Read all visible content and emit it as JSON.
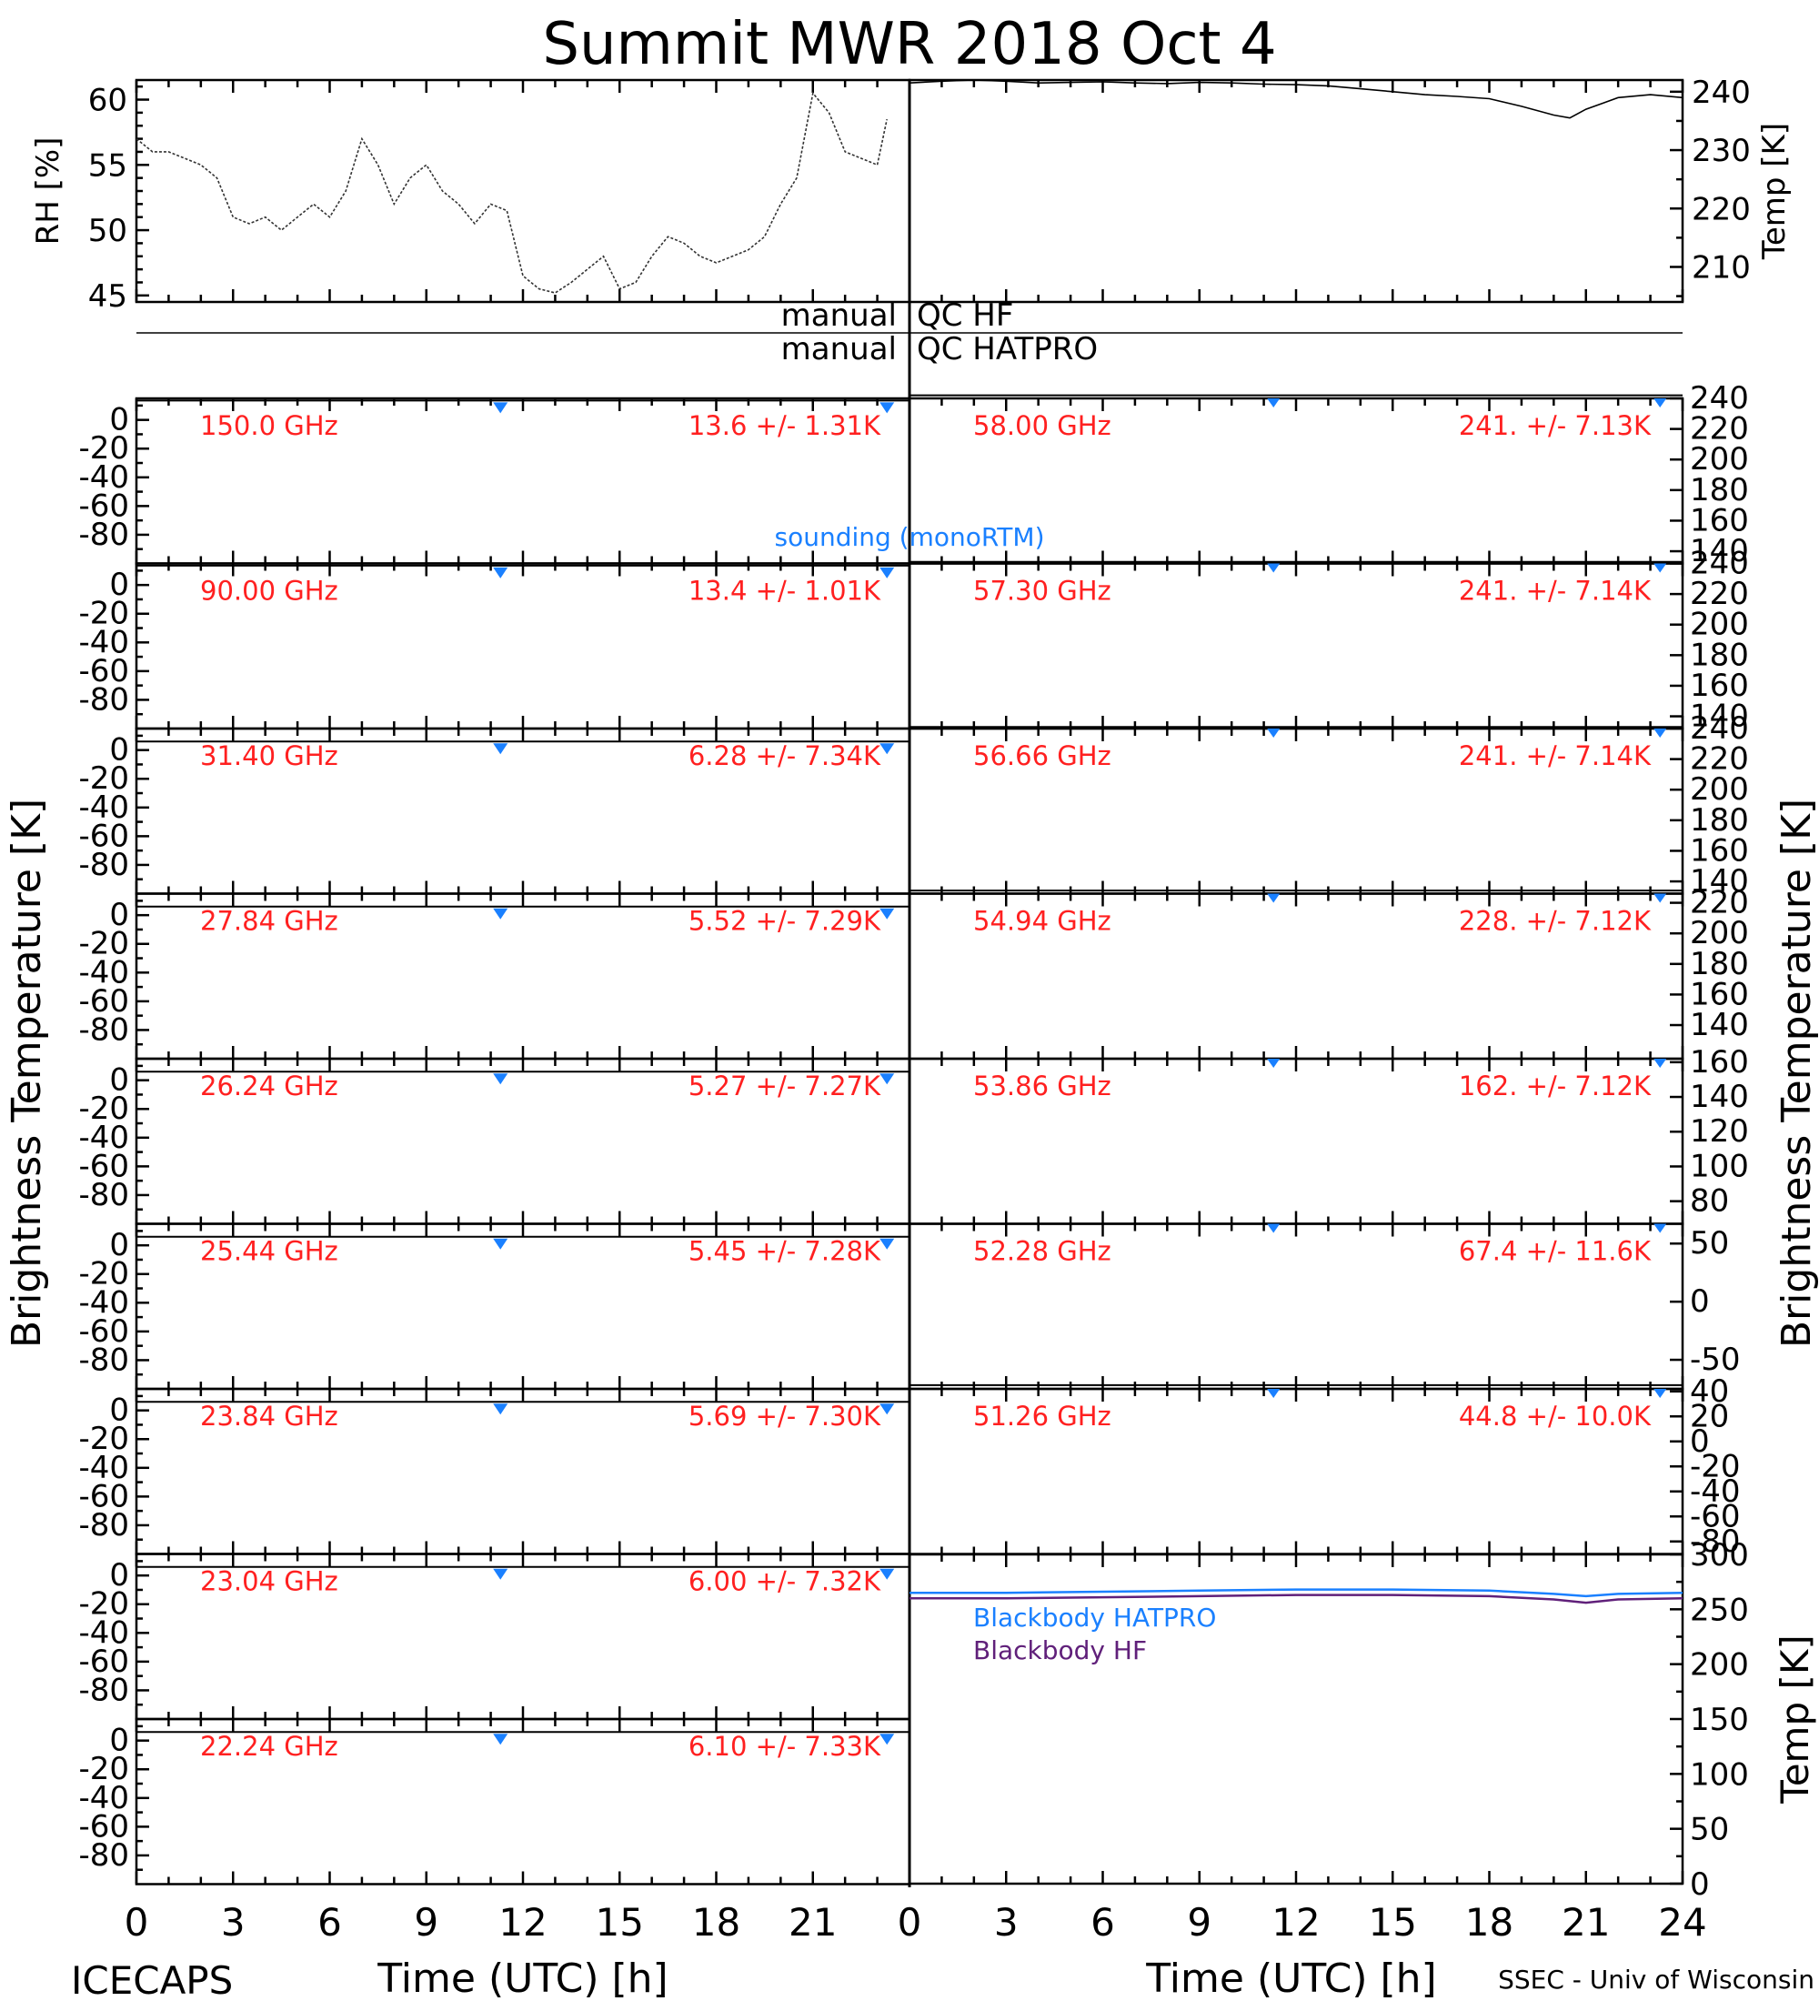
{
  "title": "Summit MWR 2018 Oct  4",
  "footer_left": "ICECAPS",
  "footer_right": "SSEC - Univ of Wisconsin",
  "x_axis_label": "Time (UTC) [h]",
  "x_ticks": [
    0,
    3,
    6,
    9,
    12,
    15,
    18,
    21,
    24
  ],
  "y_label_left": "Brightness Temperature [K]",
  "y_label_right": "Brightness Temperature [K]",
  "qc": {
    "hf_left": "manual",
    "hf_right": "QC HF",
    "hatpro_left": "manual",
    "hatpro_right": "QC HATPRO"
  },
  "colors": {
    "annotation": "#ff2020",
    "sounding": "#1a80ff",
    "blackbody_hatpro": "#1a80ff",
    "blackbody_hf": "#60207a"
  },
  "chart_data": [
    {
      "type": "line",
      "ylabel": "RH [%]",
      "ylim": [
        44.5,
        61.5
      ],
      "yticks": [
        45,
        50,
        55,
        60
      ],
      "xlim": [
        0,
        23.3
      ],
      "x": [
        0,
        0.5,
        1,
        1.5,
        2,
        2.5,
        3,
        3.5,
        4,
        4.5,
        5,
        5.5,
        6,
        6.5,
        7,
        7.5,
        8,
        8.5,
        9,
        9.5,
        10,
        10.5,
        11,
        11.5,
        12,
        12.5,
        13,
        13.5,
        14,
        14.5,
        15,
        15.5,
        16,
        16.5,
        17,
        17.5,
        18,
        18.5,
        19,
        19.5,
        20,
        20.5,
        21,
        21.5,
        22,
        22.5,
        23,
        23.3
      ],
      "y": [
        57,
        56,
        56,
        55.5,
        55,
        54,
        51,
        50.5,
        51,
        50,
        51,
        52,
        51,
        53,
        57,
        55,
        52,
        54,
        55,
        53,
        52,
        50.5,
        52,
        51.5,
        46.5,
        45.5,
        45.2,
        46,
        47,
        48,
        45.5,
        46,
        48,
        49.5,
        49,
        48,
        47.5,
        48,
        48.5,
        49.5,
        52,
        54,
        60.5,
        59,
        56,
        55.5,
        55,
        58.5
      ]
    },
    {
      "type": "line",
      "ylabel": "Temp [K]",
      "ylim": [
        204,
        242
      ],
      "yticks": [
        210,
        220,
        230,
        240
      ],
      "xlim": [
        0,
        24
      ],
      "x": [
        0,
        1,
        2,
        3,
        4,
        5,
        6,
        7,
        8,
        9,
        10,
        11,
        12,
        13,
        14,
        15,
        16,
        17,
        18,
        19,
        20,
        20.5,
        21,
        21.5,
        22,
        23,
        24
      ],
      "y": [
        241.5,
        241.8,
        242,
        241.8,
        241.5,
        241.6,
        241.7,
        241.5,
        241.4,
        241.6,
        241.5,
        241.3,
        241.2,
        241,
        240.5,
        240,
        239.5,
        239.2,
        238.8,
        237.5,
        236,
        235.5,
        237,
        238,
        239,
        239.5,
        239
      ]
    },
    {
      "type": "line",
      "panel": "left",
      "channels": [
        {
          "label": "150.0 GHz",
          "stats": "13.6 +/-  1.31K"
        },
        {
          "label": "90.00 GHz",
          "stats": "13.4 +/-  1.01K"
        },
        {
          "label": "31.40 GHz",
          "stats": "6.28 +/- 7.34K"
        },
        {
          "label": "27.84 GHz",
          "stats": "5.52 +/- 7.29K"
        },
        {
          "label": "26.24 GHz",
          "stats": "5.27 +/- 7.27K"
        },
        {
          "label": "25.44 GHz",
          "stats": "5.45 +/- 7.28K"
        },
        {
          "label": "23.84 GHz",
          "stats": "5.69 +/- 7.30K"
        },
        {
          "label": "23.04 GHz",
          "stats": "6.00 +/- 7.32K"
        },
        {
          "label": "22.24 GHz",
          "stats": "6.10 +/- 7.33K"
        }
      ],
      "ylim": [
        -100,
        15
      ],
      "yticks": [
        0,
        -20,
        -40,
        -60,
        -80
      ],
      "sounding_times": [
        11.3,
        23.3
      ],
      "sounding_label": "sounding (monoRTM)"
    },
    {
      "type": "line",
      "panel": "right",
      "channels": [
        {
          "label": "58.00 GHz",
          "stats": "241. +/- 7.13K",
          "ylim": [
            132,
            240
          ],
          "yticks": [
            240,
            220,
            200,
            180,
            160,
            140
          ],
          "level": 242
        },
        {
          "label": "57.30 GHz",
          "stats": "241. +/- 7.14K",
          "ylim": [
            132,
            240
          ],
          "yticks": [
            240,
            220,
            200,
            180,
            160,
            140
          ],
          "level": 241
        },
        {
          "label": "56.66 GHz",
          "stats": "241. +/- 7.14K",
          "ylim": [
            132,
            240
          ],
          "yticks": [
            240,
            220,
            200,
            180,
            160,
            140
          ],
          "level": 241
        },
        {
          "label": "54.94 GHz",
          "stats": "228. +/- 7.12K",
          "ylim": [
            118,
            226
          ],
          "yticks": [
            220,
            200,
            180,
            160,
            140
          ],
          "level": 228
        },
        {
          "label": "53.86 GHz",
          "stats": "162. +/- 7.12K",
          "ylim": [
            67,
            162
          ],
          "yticks": [
            160,
            140,
            120,
            100,
            80
          ],
          "level": 162
        },
        {
          "label": "52.28 GHz",
          "stats": "67.4 +/- 11.6K",
          "ylim": [
            -75,
            67
          ],
          "yticks": [
            50,
            0,
            -50
          ],
          "level": 67
        },
        {
          "label": "51.26 GHz",
          "stats": "44.8 +/- 10.0K",
          "ylim": [
            -90,
            42
          ],
          "yticks": [
            40,
            20,
            0,
            -20,
            -40,
            -60,
            -80
          ],
          "level": 45
        }
      ],
      "sounding_times": [
        11.3,
        23.3
      ]
    },
    {
      "type": "line",
      "ylabel": "Temp [K]",
      "ylim": [
        0,
        300
      ],
      "yticks": [
        300,
        250,
        200,
        150,
        100,
        50,
        0
      ],
      "xlim": [
        0,
        24
      ],
      "xlabel": "Time (UTC) [h]",
      "series": [
        {
          "name": "Blackbody HATPRO",
          "x": [
            0,
            3,
            6,
            9,
            12,
            15,
            18,
            20,
            21,
            22,
            24
          ],
          "y": [
            265,
            265,
            266,
            267,
            268,
            268,
            267,
            264,
            262,
            264,
            265
          ]
        },
        {
          "name": "Blackbody HF",
          "x": [
            0,
            3,
            6,
            9,
            12,
            15,
            18,
            20,
            21,
            22,
            24
          ],
          "y": [
            260,
            260,
            261,
            262,
            263,
            263,
            262,
            259,
            256,
            259,
            260
          ]
        }
      ]
    }
  ]
}
